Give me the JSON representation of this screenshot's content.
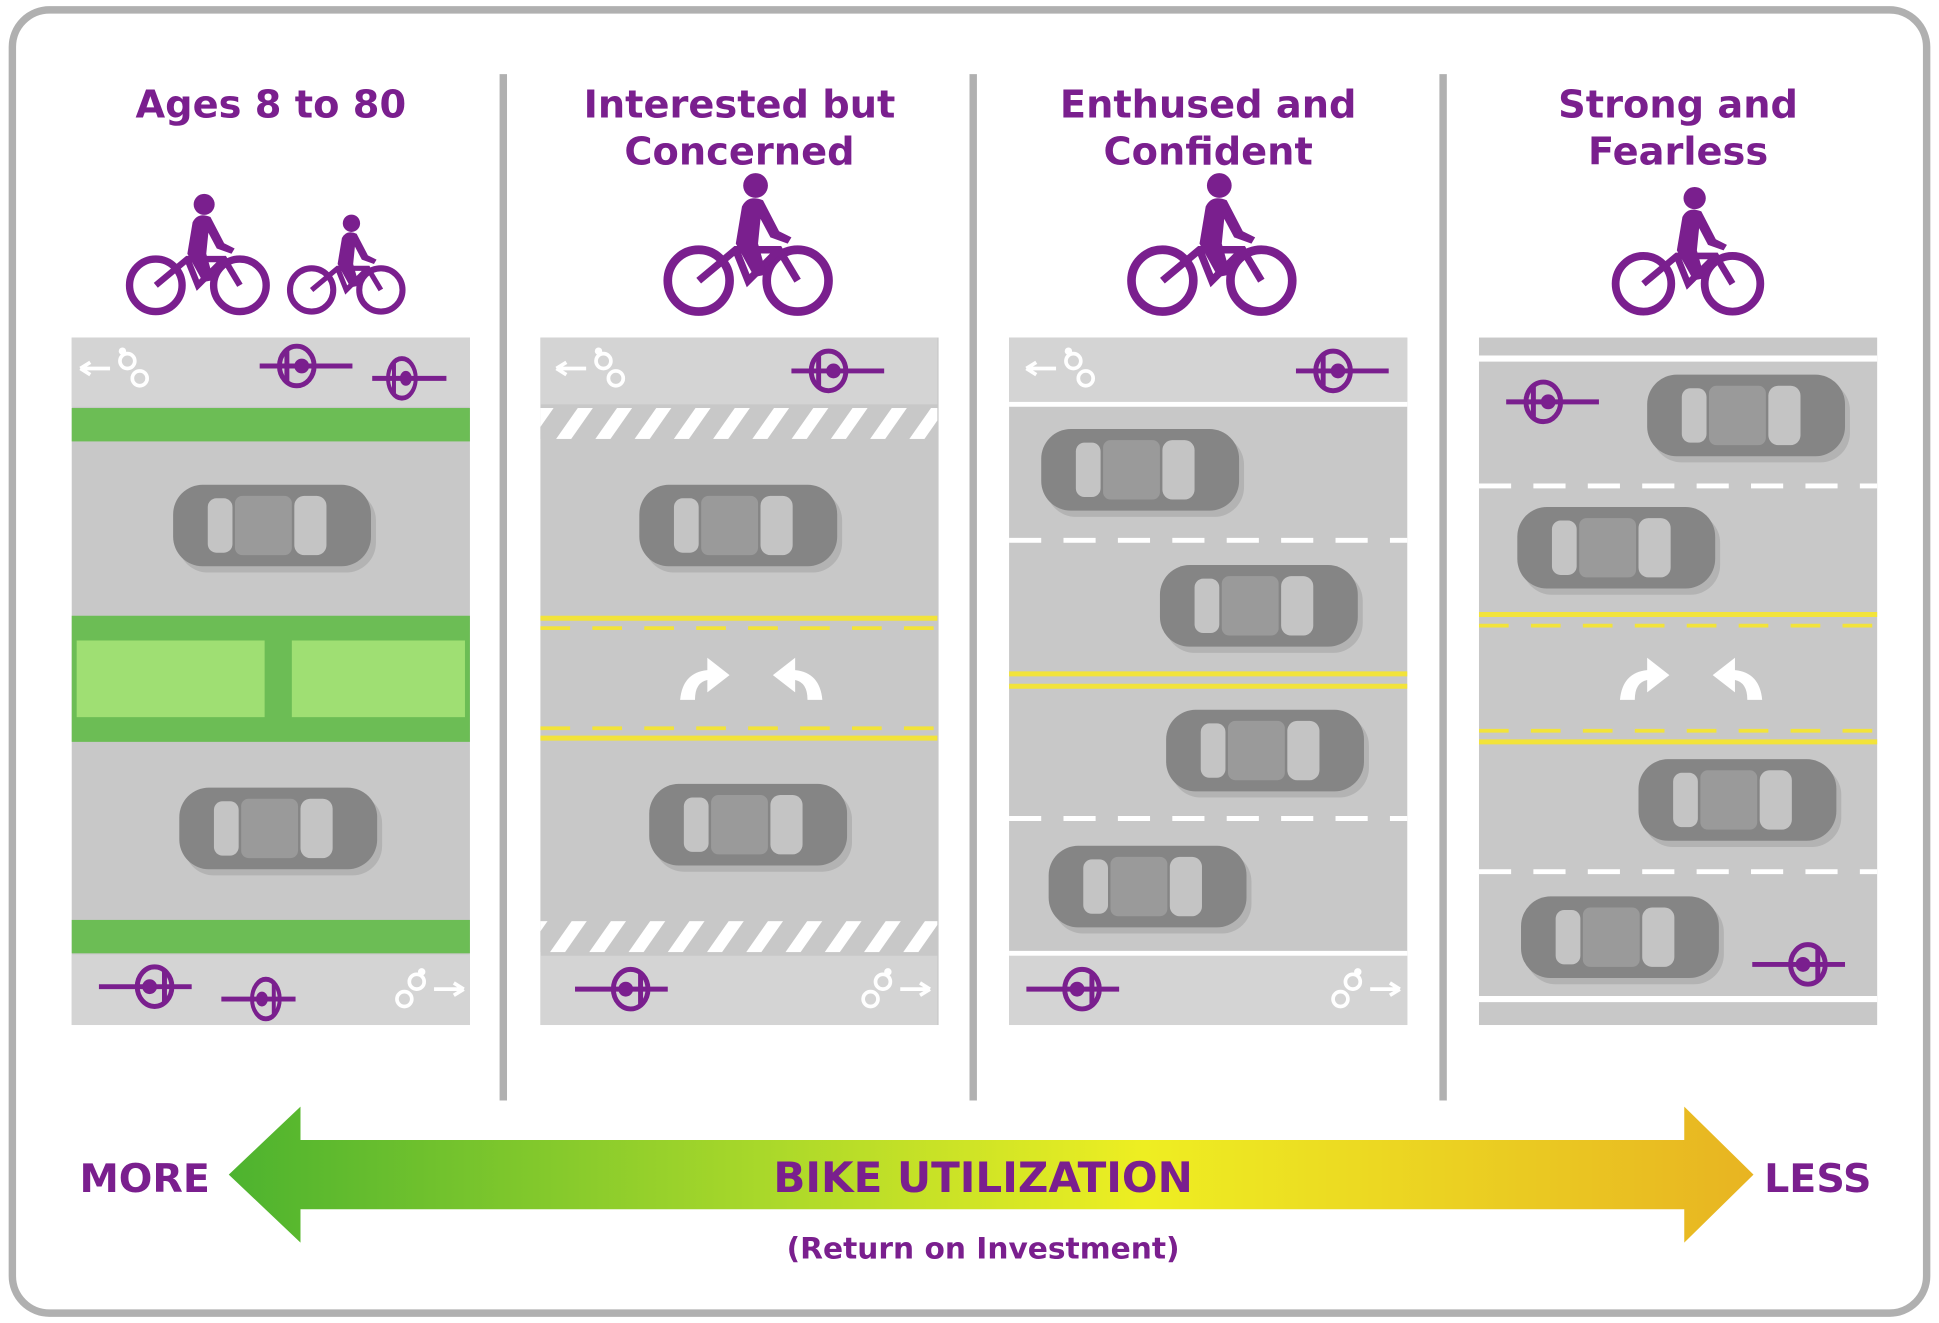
{
  "columns": [
    {
      "title": [
        "Ages 8 to 80"
      ]
    },
    {
      "title": [
        "Interested but",
        "Concerned"
      ]
    },
    {
      "title": [
        "Enthused and",
        "Confident"
      ]
    },
    {
      "title": [
        "Strong and",
        "Fearless"
      ]
    }
  ],
  "arrow": {
    "left": "MORE",
    "center": "BIKE UTILIZATION",
    "subtitle": "(Return on Investment)",
    "right": "LESS"
  }
}
